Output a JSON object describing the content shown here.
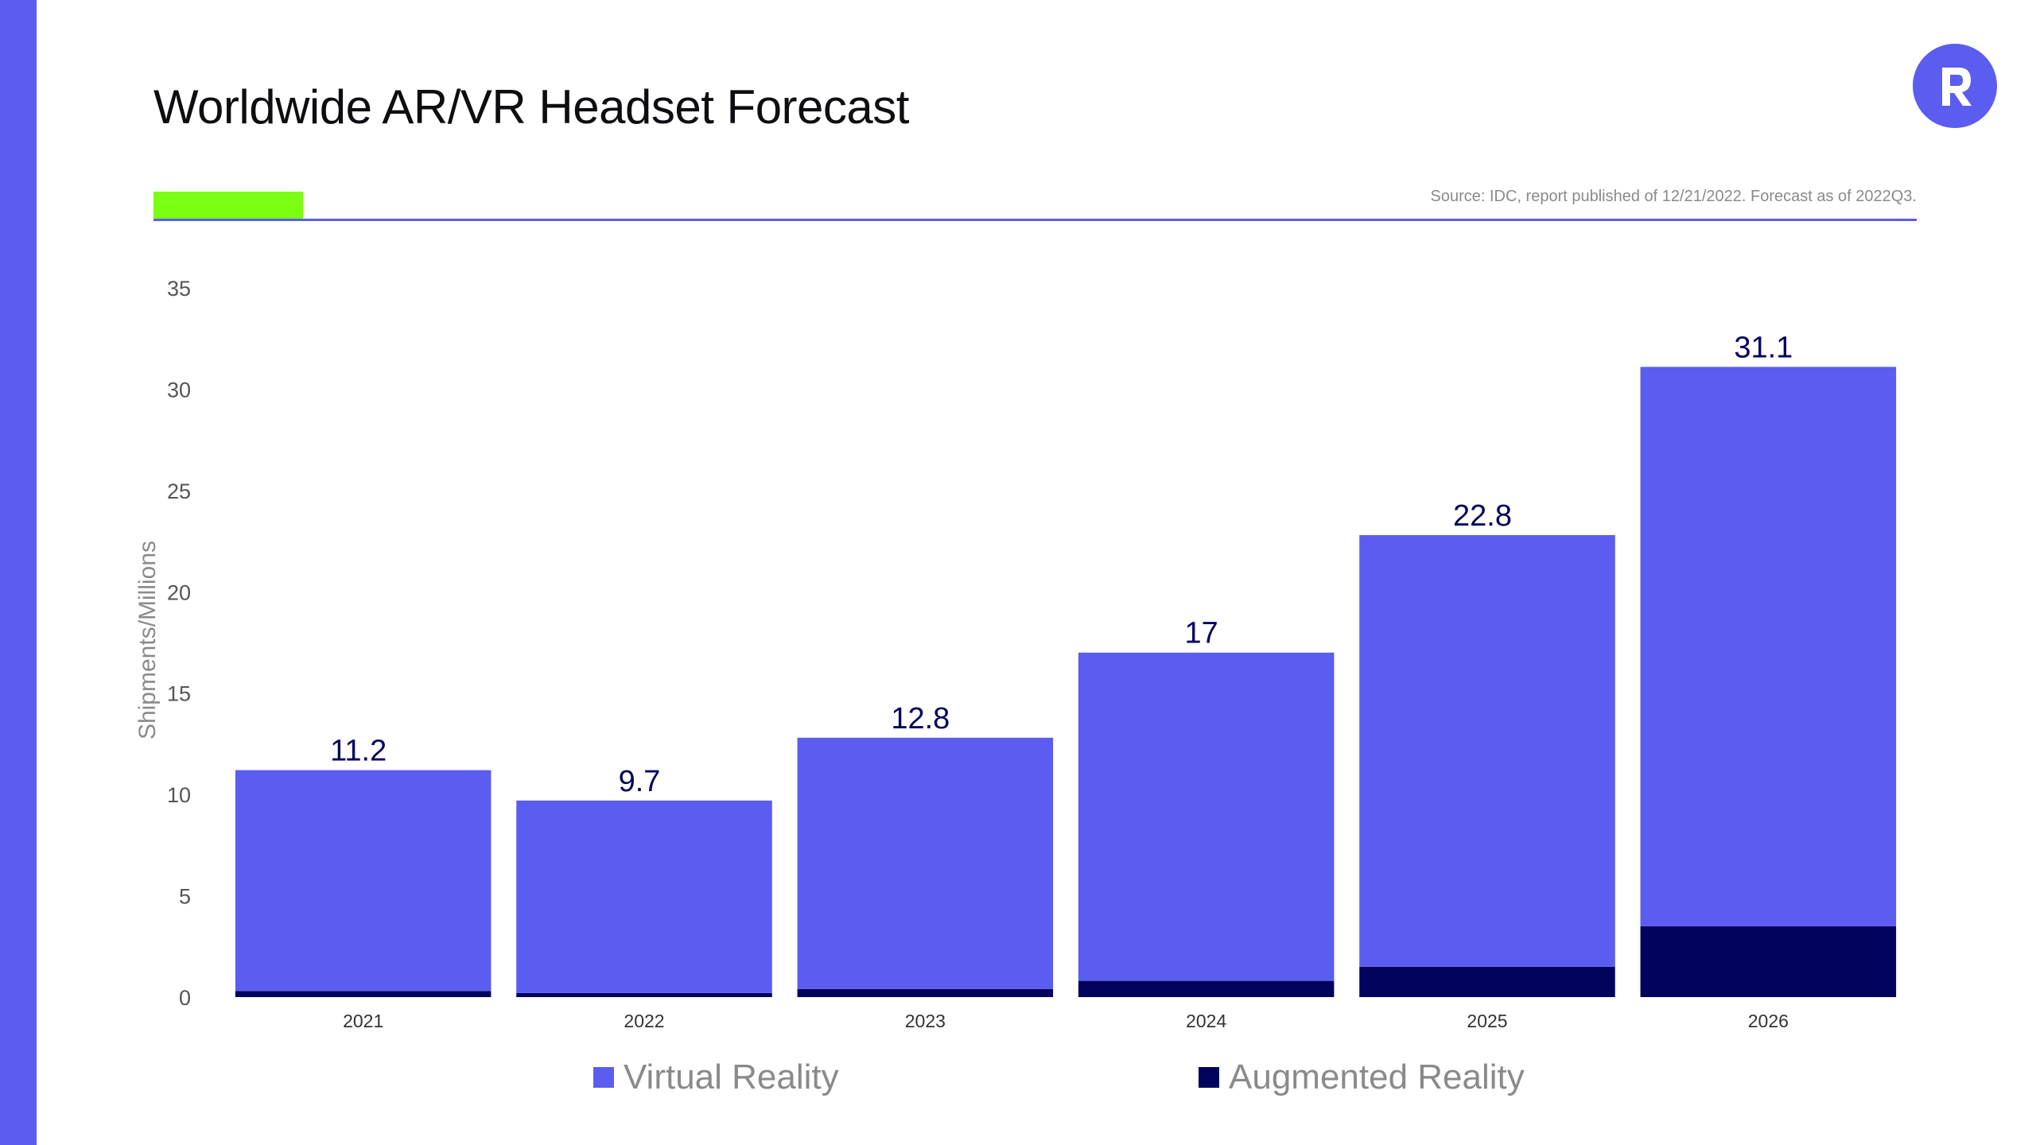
{
  "header": {
    "title": "Worldwide AR/VR Headset Forecast",
    "source": "Source: IDC, report published of 12/21/2022. Forecast as of 2022Q3."
  },
  "colors": {
    "accent": "#5b5cf0",
    "dark": "#02035c",
    "highlight": "#7bff12"
  },
  "logo": {
    "icon": "r-logo-icon"
  },
  "chart_data": {
    "type": "bar",
    "stacked": true,
    "title": "Worldwide AR/VR Headset Forecast",
    "xlabel": "",
    "ylabel": "Shipments/Millions",
    "ylim": [
      0,
      35
    ],
    "yticks": [
      "0",
      "5",
      "10",
      "15",
      "20",
      "25",
      "30",
      "35"
    ],
    "categories": [
      "2021",
      "2022",
      "2023",
      "2024",
      "2025",
      "2026"
    ],
    "series": [
      {
        "name": "Augmented Reality",
        "color": "#02035c",
        "values": [
          0.3,
          0.2,
          0.4,
          0.8,
          1.5,
          3.5
        ]
      },
      {
        "name": "Virtual Reality",
        "color": "#5b5cf0",
        "values": [
          10.9,
          9.5,
          12.4,
          16.2,
          21.3,
          27.6
        ]
      }
    ],
    "totals": [
      11.2,
      9.7,
      12.8,
      17,
      22.8,
      31.1
    ],
    "total_labels": [
      "11.2",
      "9.7",
      "12.8",
      "17",
      "22.8",
      "31.1"
    ],
    "grid": false,
    "legend_position": "bottom"
  },
  "legend": {
    "vr_label": "Virtual Reality",
    "ar_label": "Augmented Reality"
  }
}
